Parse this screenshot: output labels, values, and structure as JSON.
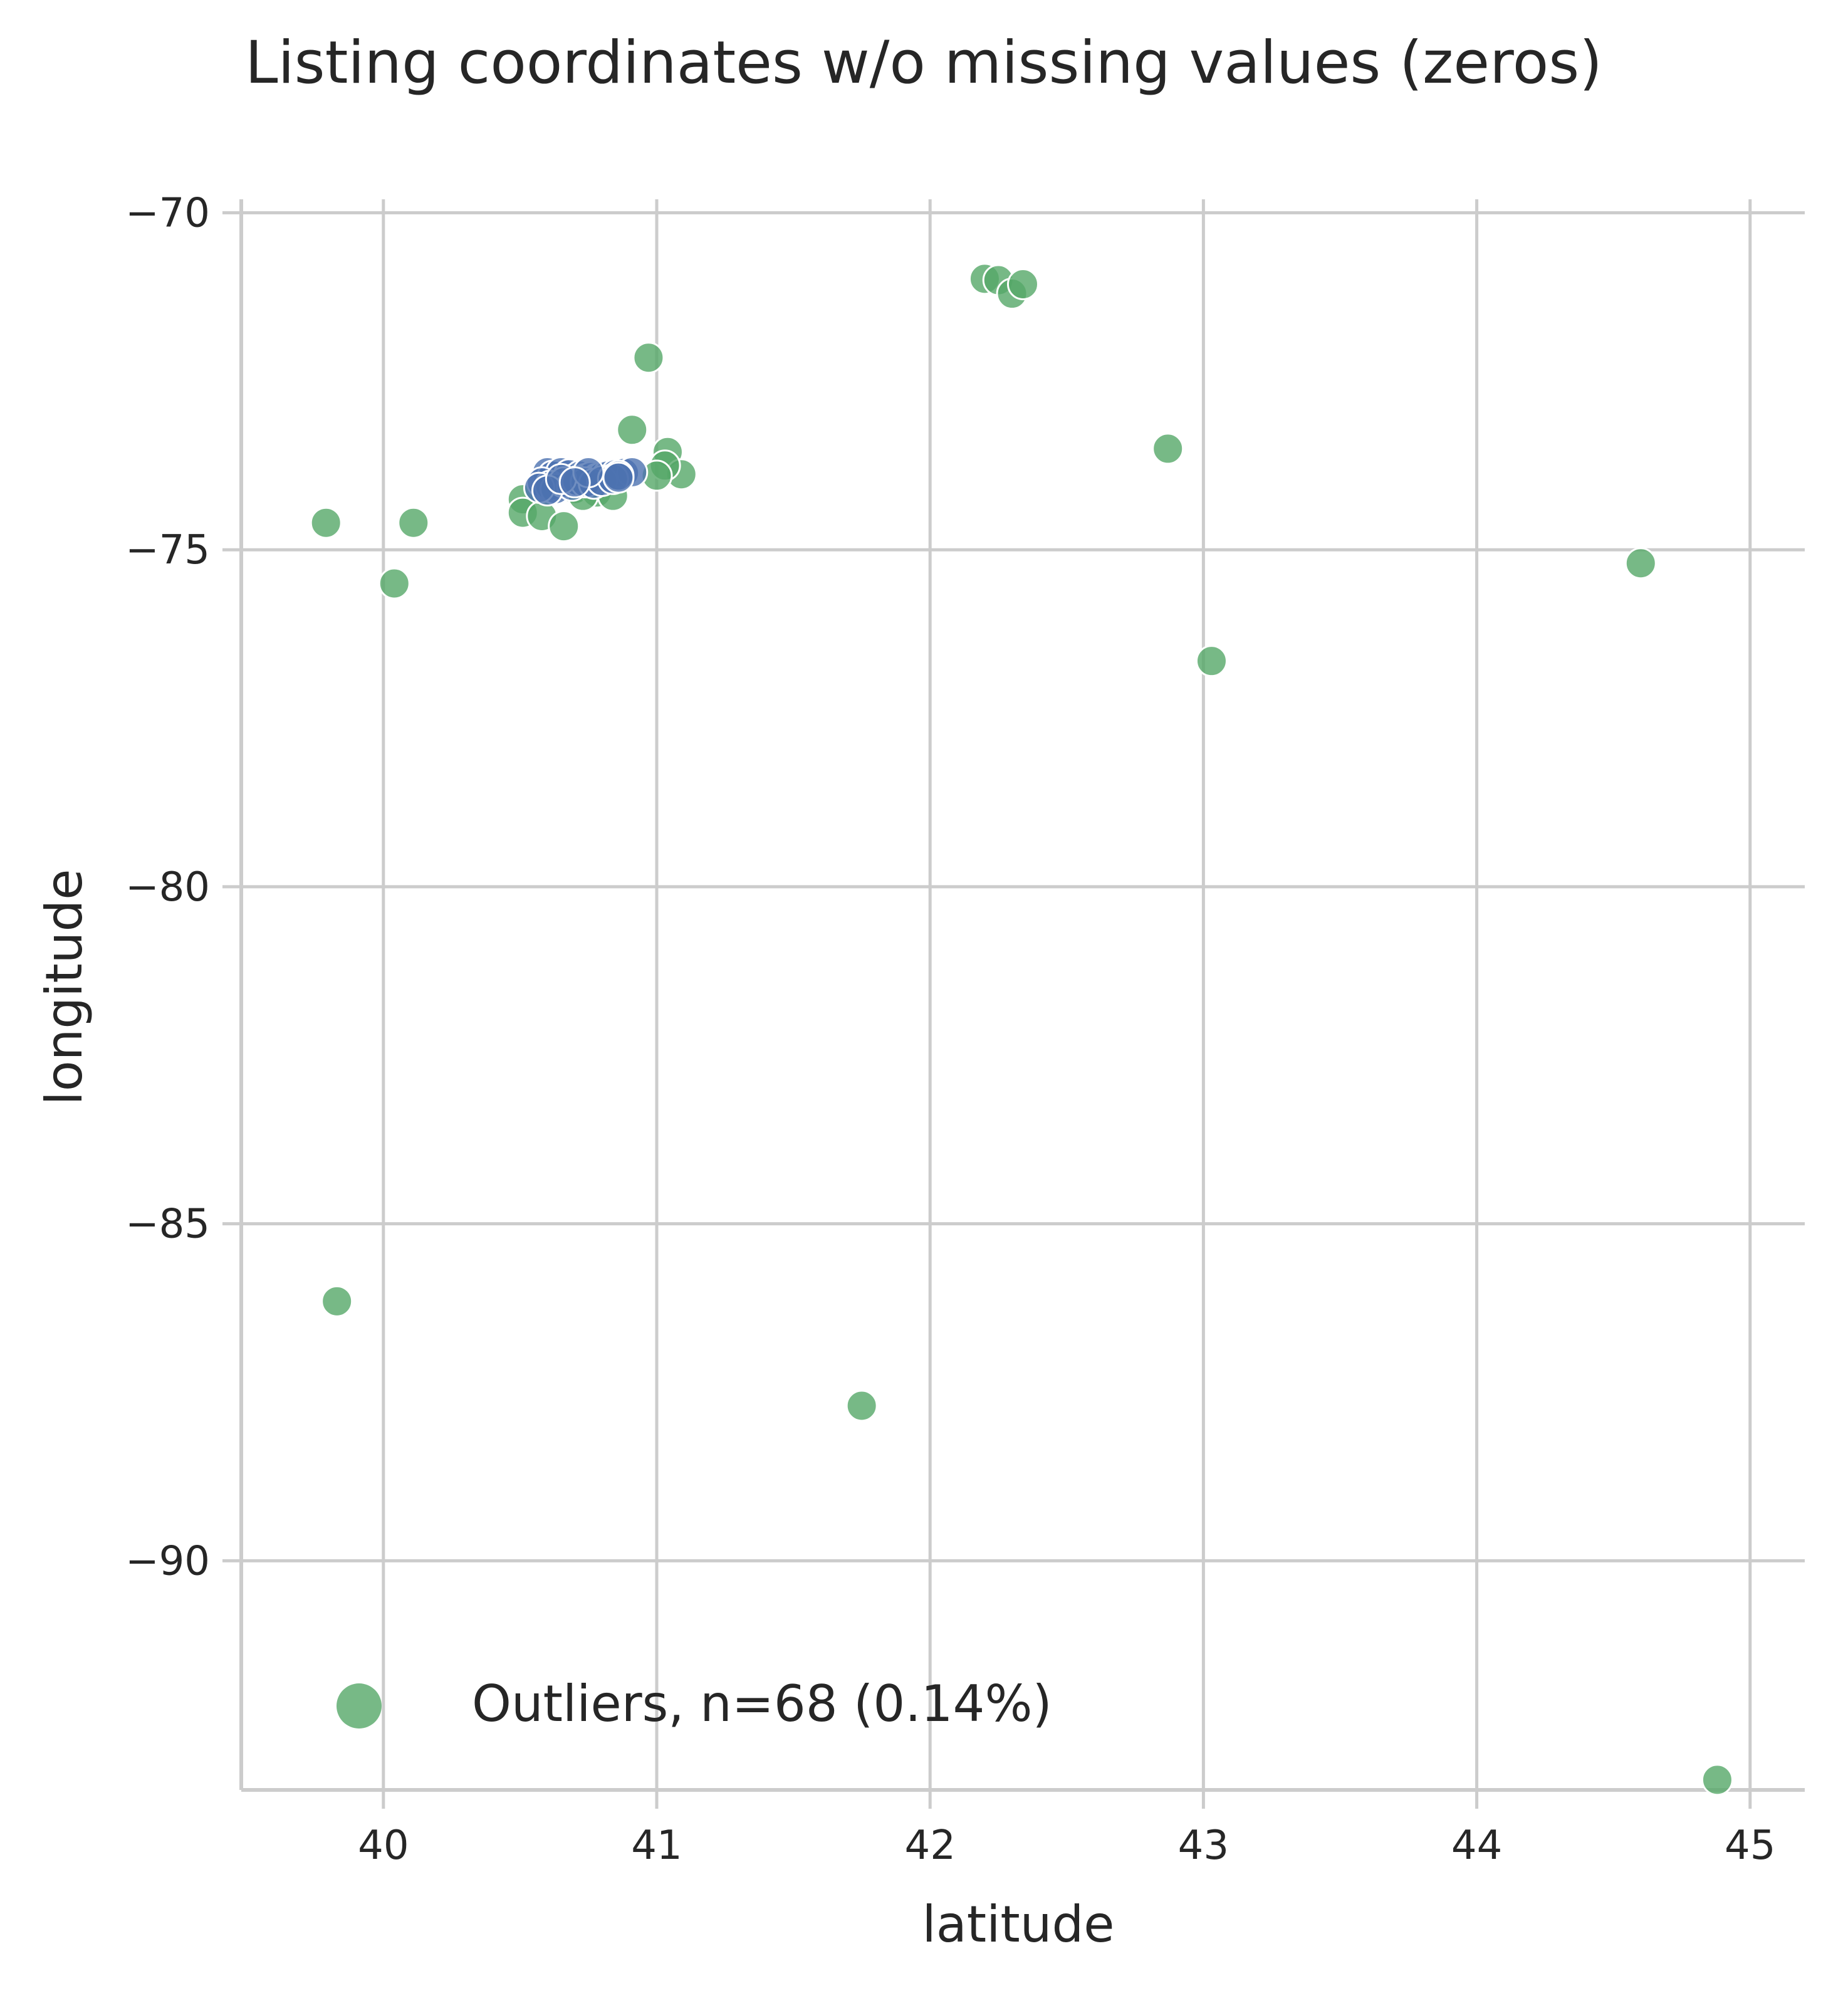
{
  "chart_data": {
    "type": "scatter",
    "title": "Listing coordinates w/o missing values (zeros)",
    "xlabel": "latitude",
    "ylabel": "longitude",
    "xlim": [
      39.48,
      45.2
    ],
    "ylim": [
      -93.4,
      -69.8
    ],
    "xticks": [
      40,
      41,
      42,
      43,
      44,
      45
    ],
    "yticks": [
      -70,
      -75,
      -80,
      -85,
      -90
    ],
    "grid": true,
    "legend": {
      "position": "lower-left",
      "entries": [
        "Outliers, n=68 (0.14%)"
      ]
    },
    "colors": {
      "outlier": "#55a868",
      "main": "#4c72b0",
      "grid": "#cccccc",
      "axis": "#cccccc"
    },
    "series": [
      {
        "name": "Outliers, n=68 (0.14%)",
        "color": "#55a868",
        "points": [
          [
            42.2,
            -70.98
          ],
          [
            42.25,
            -71.0
          ],
          [
            42.3,
            -71.2
          ],
          [
            42.34,
            -71.06
          ],
          [
            40.97,
            -72.15
          ],
          [
            40.91,
            -73.22
          ],
          [
            41.04,
            -73.55
          ],
          [
            41.09,
            -73.88
          ],
          [
            41.03,
            -73.75
          ],
          [
            41.0,
            -73.9
          ],
          [
            42.87,
            -73.5
          ],
          [
            39.79,
            -74.6
          ],
          [
            40.11,
            -74.6
          ],
          [
            40.04,
            -75.5
          ],
          [
            40.51,
            -74.25
          ],
          [
            40.51,
            -74.45
          ],
          [
            40.58,
            -74.5
          ],
          [
            40.66,
            -74.65
          ],
          [
            40.7,
            -74.1
          ],
          [
            40.78,
            -74.15
          ],
          [
            40.84,
            -74.2
          ],
          [
            40.73,
            -74.2
          ],
          [
            44.6,
            -75.2
          ],
          [
            43.03,
            -76.65
          ],
          [
            39.83,
            -86.15
          ],
          [
            41.75,
            -87.7
          ],
          [
            44.88,
            -93.25
          ]
        ]
      },
      {
        "name": "",
        "color": "#4c72b0",
        "points": [
          [
            40.6,
            -73.85
          ],
          [
            40.62,
            -73.9
          ],
          [
            40.65,
            -73.85
          ],
          [
            40.68,
            -73.88
          ],
          [
            40.7,
            -73.95
          ],
          [
            40.72,
            -73.9
          ],
          [
            40.74,
            -73.95
          ],
          [
            40.76,
            -73.92
          ],
          [
            40.78,
            -73.95
          ],
          [
            40.8,
            -73.92
          ],
          [
            40.82,
            -73.9
          ],
          [
            40.85,
            -73.88
          ],
          [
            40.88,
            -73.86
          ],
          [
            40.91,
            -73.85
          ],
          [
            40.58,
            -74.0
          ],
          [
            40.61,
            -74.05
          ],
          [
            40.63,
            -74.1
          ],
          [
            40.66,
            -74.0
          ],
          [
            40.69,
            -74.05
          ],
          [
            40.71,
            -73.98
          ],
          [
            40.74,
            -74.0
          ],
          [
            40.77,
            -74.02
          ],
          [
            40.8,
            -73.98
          ],
          [
            40.84,
            -73.95
          ],
          [
            40.86,
            -73.9
          ],
          [
            40.57,
            -74.08
          ],
          [
            40.6,
            -74.12
          ],
          [
            40.65,
            -73.95
          ],
          [
            40.75,
            -73.85
          ],
          [
            40.7,
            -74.0
          ],
          [
            40.86,
            -73.93
          ]
        ]
      }
    ]
  }
}
